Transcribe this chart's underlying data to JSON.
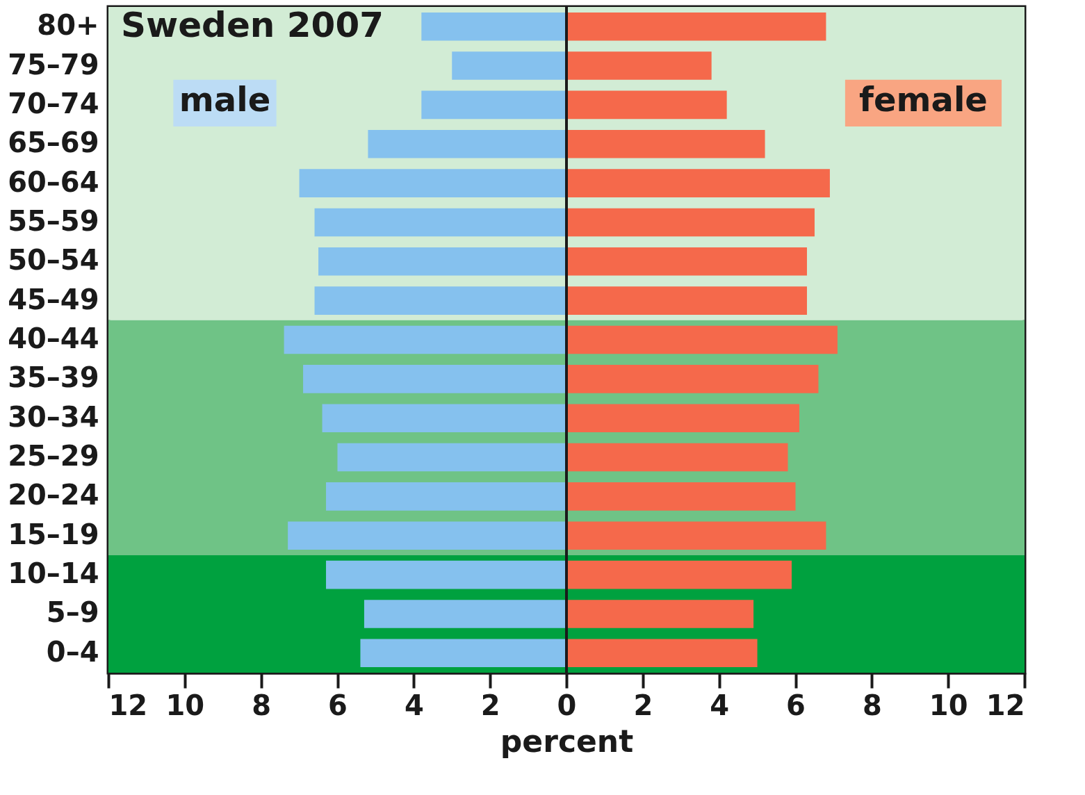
{
  "chart_data": {
    "type": "bar",
    "orientation": "horizontal",
    "title": "Sweden 2007",
    "xlabel": "percent",
    "categories": [
      "80+",
      "75–79",
      "70–74",
      "65–69",
      "60–64",
      "55–59",
      "50–54",
      "45–49",
      "40–44",
      "35–39",
      "30–34",
      "25–29",
      "20–24",
      "15–19",
      "10–14",
      "5–9",
      "0–4"
    ],
    "series": [
      {
        "name": "male",
        "color": "#85c1ee",
        "values": [
          -3.8,
          -3.0,
          -3.8,
          -5.2,
          -7.0,
          -6.6,
          -6.5,
          -6.6,
          -7.4,
          -6.9,
          -6.4,
          -6.0,
          -6.3,
          -7.3,
          -6.3,
          -5.3,
          -5.4
        ]
      },
      {
        "name": "female",
        "color": "#f5694b",
        "values": [
          6.8,
          3.8,
          4.2,
          5.2,
          6.9,
          6.5,
          6.3,
          6.3,
          7.1,
          6.6,
          6.1,
          5.8,
          6.0,
          6.8,
          5.9,
          4.9,
          5.0
        ]
      }
    ],
    "xlim": [
      -12,
      12
    ],
    "xticks": [
      {
        "value": -12,
        "label": "12"
      },
      {
        "value": -10,
        "label": "10"
      },
      {
        "value": -8,
        "label": "8"
      },
      {
        "value": -6,
        "label": "6"
      },
      {
        "value": -4,
        "label": "4"
      },
      {
        "value": -2,
        "label": "2"
      },
      0,
      2,
      4,
      6,
      8,
      10,
      12
    ],
    "bands": [
      {
        "axis": "y",
        "from": "80+",
        "to": "45–49",
        "color": "#d2ecd5"
      },
      {
        "axis": "y",
        "from": "40–44",
        "to": "15–19",
        "color": "#6fc386"
      },
      {
        "axis": "y",
        "from": "10–14",
        "to": "0–4",
        "color": "#00a13f"
      }
    ],
    "ref_lines": [
      {
        "axis": "x",
        "value": 0,
        "color": "#1a1a1a"
      }
    ],
    "stacked": true,
    "grid": false
  }
}
